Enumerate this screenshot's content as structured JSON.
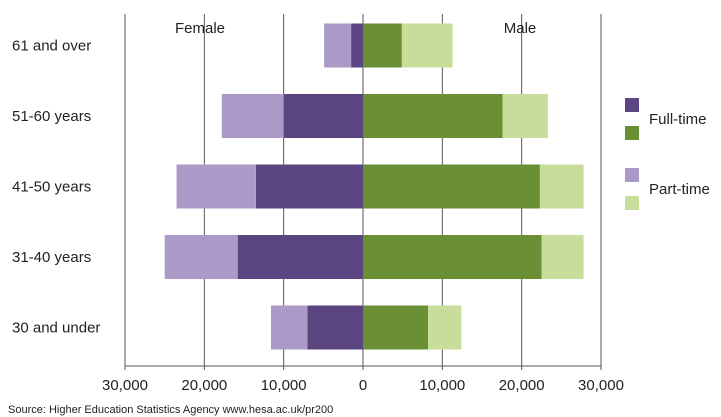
{
  "chart_data": {
    "type": "bar",
    "orientation": "horizontal",
    "layout": "population-pyramid",
    "categories": [
      "61 and over",
      "51-60 years",
      "41-50 years",
      "31-40 years",
      "30 and under"
    ],
    "panel_labels": {
      "left": "Female",
      "right": "Male"
    },
    "series": [
      {
        "name": "Full-time",
        "group": "Female",
        "values": [
          1500,
          10000,
          13500,
          15800,
          7000
        ]
      },
      {
        "name": "Part-time",
        "group": "Female",
        "values": [
          3400,
          7800,
          10000,
          9200,
          4600
        ]
      },
      {
        "name": "Full-time",
        "group": "Male",
        "values": [
          4900,
          17600,
          22300,
          22500,
          8200
        ]
      },
      {
        "name": "Part-time",
        "group": "Male",
        "values": [
          6400,
          5700,
          5500,
          5300,
          4200
        ]
      }
    ],
    "xlim": [
      -30000,
      30000
    ],
    "xticks": [
      -30000,
      -20000,
      -10000,
      0,
      10000,
      20000,
      30000
    ],
    "xtick_labels": [
      "30,000",
      "20,000",
      "10,000",
      "0",
      "10,000",
      "20,000",
      "30,000"
    ],
    "grid": "vertical",
    "legend": {
      "position": "right",
      "entries": [
        {
          "label": "Full-time",
          "colors": [
            "#5b4580",
            "#6a8f34"
          ]
        },
        {
          "label": "Part-time",
          "colors": [
            "#ab9ac8",
            "#c8dd9c"
          ]
        }
      ]
    },
    "colors": {
      "female_fulltime": "#5b4580",
      "female_parttime": "#ab9ac8",
      "male_fulltime": "#6a8f34",
      "male_parttime": "#c8dd9c",
      "grid": "#555555"
    },
    "source": "Source: Higher Education Statistics Agency www.hesa.ac.uk/pr200"
  }
}
